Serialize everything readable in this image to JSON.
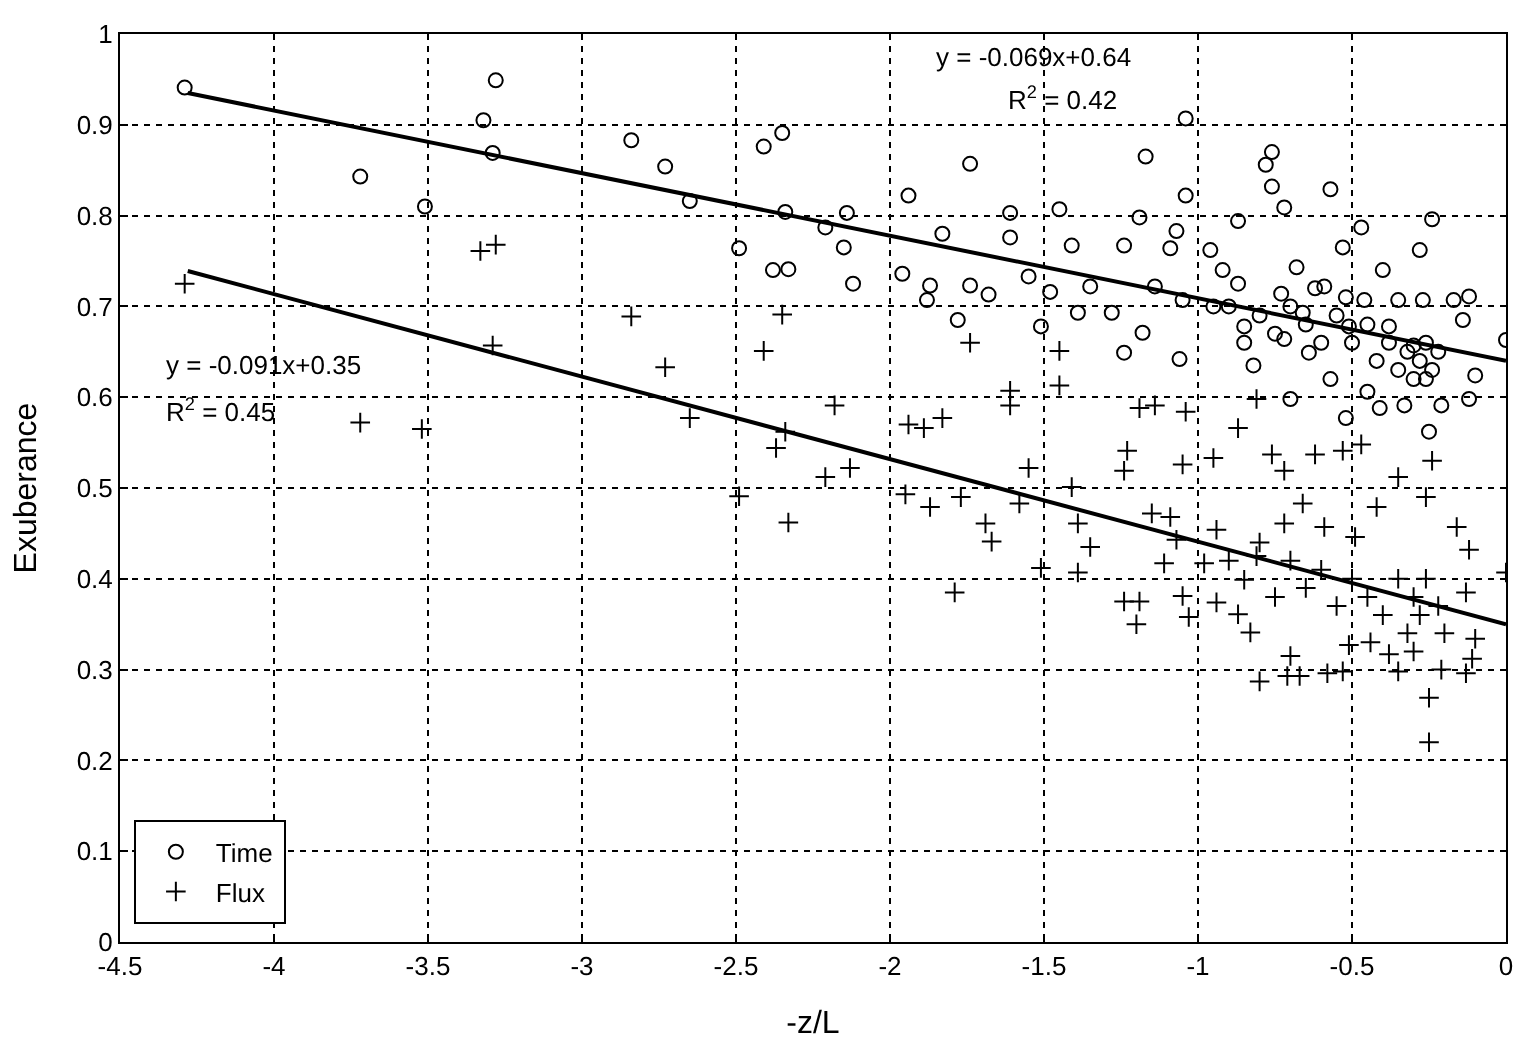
{
  "chart_data": {
    "type": "scatter",
    "xlabel": "-z/L",
    "ylabel": "Exuberance",
    "xlim": [
      -4.5,
      0
    ],
    "ylim": [
      0,
      1
    ],
    "xticks": [
      -4.5,
      -4,
      -3.5,
      -3,
      -2.5,
      -2,
      -1.5,
      -1,
      -0.5,
      0
    ],
    "yticks": [
      0,
      0.1,
      0.2,
      0.3,
      0.4,
      0.5,
      0.6,
      0.7,
      0.8,
      0.9,
      1
    ],
    "grid": true,
    "legend": "bottom left",
    "annotations": [
      "y = -0.069x+0.64",
      "R$^{2}$ = 0.42",
      "y = -0.091x+0.35",
      "R$^{2}$ = 0.45"
    ],
    "series": [
      {
        "name": "Time",
        "color": "#000000",
        "marker": "circle",
        "x": [
          -4.29,
          -3.72,
          -3.51,
          -3.32,
          -3.28,
          -3.29,
          -2.84,
          -2.73,
          -2.65,
          -2.49,
          -2.41,
          -2.35,
          -2.34,
          -2.38,
          -2.33,
          -2.21,
          -2.15,
          -2.14,
          -2.12,
          -1.94,
          -1.96,
          -1.87,
          -1.88,
          -1.83,
          -1.78,
          -1.74,
          -1.74,
          -1.68,
          -1.61,
          -1.61,
          -1.55,
          -1.51,
          -1.48,
          -1.45,
          -1.41,
          -1.39,
          -1.35,
          -1.28,
          -1.24,
          -1.24,
          -1.19,
          -1.17,
          -1.18,
          -1.14,
          -1.09,
          -1.07,
          -1.05,
          -1.04,
          -1.04,
          -1.06,
          -0.96,
          -0.95,
          -0.92,
          -0.87,
          -0.87,
          -0.85,
          -0.82,
          -0.78,
          -0.76,
          -0.76,
          -0.72,
          -0.73,
          -0.72,
          -0.7,
          -0.68,
          -0.66,
          -0.64,
          -0.59,
          -0.57,
          -0.57,
          -0.53,
          -0.52,
          -0.51,
          -0.47,
          -0.46,
          -0.45,
          -0.41,
          -0.4,
          -0.38,
          -0.35,
          -0.33,
          -0.3,
          -0.28,
          -0.27,
          -0.26,
          -0.25,
          -0.24,
          -0.21,
          -0.17,
          -0.14,
          -0.12,
          -0.12,
          -0.1,
          0.0,
          -0.8,
          -0.75,
          -0.7,
          -0.65,
          -0.6,
          -0.55,
          -0.5,
          -0.45,
          -0.42,
          -0.38,
          -0.35,
          -0.32,
          -0.3,
          -0.28,
          -0.26,
          -0.24,
          -0.22,
          -0.9,
          -0.85,
          -0.62,
          -0.52
        ],
        "values": [
          0.941,
          0.843,
          0.81,
          0.905,
          0.949,
          0.869,
          0.883,
          0.854,
          0.816,
          0.764,
          0.876,
          0.891,
          0.804,
          0.74,
          0.741,
          0.787,
          0.765,
          0.803,
          0.725,
          0.822,
          0.736,
          0.723,
          0.707,
          0.78,
          0.685,
          0.857,
          0.723,
          0.713,
          0.803,
          0.776,
          0.733,
          0.678,
          0.716,
          0.807,
          0.767,
          0.693,
          0.722,
          0.693,
          0.649,
          0.767,
          0.798,
          0.865,
          0.671,
          0.722,
          0.764,
          0.783,
          0.707,
          0.907,
          0.822,
          0.642,
          0.762,
          0.7,
          0.74,
          0.794,
          0.725,
          0.678,
          0.635,
          0.856,
          0.87,
          0.832,
          0.809,
          0.714,
          0.664,
          0.598,
          0.743,
          0.693,
          0.649,
          0.722,
          0.829,
          0.62,
          0.765,
          0.577,
          0.678,
          0.787,
          0.707,
          0.606,
          0.588,
          0.74,
          0.678,
          0.707,
          0.591,
          0.657,
          0.762,
          0.707,
          0.62,
          0.562,
          0.796,
          0.591,
          0.707,
          0.685,
          0.711,
          0.598,
          0.624,
          0.663,
          0.69,
          0.67,
          0.7,
          0.68,
          0.66,
          0.69,
          0.66,
          0.68,
          0.64,
          0.66,
          0.63,
          0.65,
          0.62,
          0.64,
          0.66,
          0.63,
          0.65,
          0.7,
          0.66,
          0.72,
          0.71
        ]
      },
      {
        "name": "Flux",
        "color": "#000000",
        "marker": "cross",
        "x": [
          -4.29,
          -3.72,
          -3.52,
          -3.33,
          -3.28,
          -3.29,
          -2.84,
          -2.73,
          -2.65,
          -2.49,
          -2.41,
          -2.35,
          -2.37,
          -2.34,
          -2.33,
          -2.18,
          -2.21,
          -2.13,
          -1.94,
          -1.89,
          -1.83,
          -1.95,
          -1.87,
          -1.79,
          -1.74,
          -1.69,
          -1.67,
          -1.77,
          -1.61,
          -1.61,
          -1.55,
          -1.58,
          -1.45,
          -1.45,
          -1.51,
          -1.41,
          -1.39,
          -1.35,
          -1.19,
          -1.14,
          -1.23,
          -1.24,
          -1.15,
          -1.07,
          -1.04,
          -1.05,
          -0.95,
          -0.87,
          -0.81,
          -0.76,
          -0.72,
          -0.62,
          -0.53,
          -0.47,
          -0.35,
          -0.24,
          -0.26,
          -1.39,
          -1.24,
          -1.19,
          -1.2,
          -1.05,
          -1.03,
          -0.94,
          -0.87,
          -0.83,
          -0.8,
          -0.71,
          -0.67,
          -0.7,
          -0.58,
          -0.53,
          -0.51,
          -0.44,
          -0.38,
          -0.35,
          -0.25,
          -0.25,
          -0.21,
          -0.13,
          -0.11,
          -0.1,
          0.0,
          -0.13,
          -0.16,
          -0.12,
          -0.42,
          -0.49,
          -0.59,
          -0.66,
          -0.72,
          -0.81,
          -0.85,
          -0.94,
          -0.98,
          -1.09,
          -1.11,
          -0.3,
          -0.28,
          -0.32,
          -0.26,
          -0.22,
          -0.35,
          -0.4,
          -0.45,
          -0.5,
          -0.55,
          -0.6,
          -0.65,
          -0.7,
          -0.75,
          -0.8,
          -0.9,
          -0.2,
          -0.3
        ],
        "values": [
          0.725,
          0.572,
          0.565,
          0.761,
          0.768,
          0.657,
          0.689,
          0.633,
          0.577,
          0.491,
          0.651,
          0.691,
          0.544,
          0.562,
          0.462,
          0.591,
          0.512,
          0.522,
          0.57,
          0.566,
          0.577,
          0.493,
          0.479,
          0.385,
          0.66,
          0.461,
          0.441,
          0.49,
          0.607,
          0.591,
          0.522,
          0.483,
          0.651,
          0.613,
          0.412,
          0.501,
          0.461,
          0.435,
          0.588,
          0.591,
          0.541,
          0.519,
          0.472,
          0.443,
          0.584,
          0.526,
          0.533,
          0.566,
          0.598,
          0.537,
          0.519,
          0.537,
          0.541,
          0.548,
          0.512,
          0.53,
          0.49,
          0.407,
          0.375,
          0.375,
          0.35,
          0.381,
          0.358,
          0.374,
          0.361,
          0.341,
          0.287,
          0.293,
          0.293,
          0.315,
          0.296,
          0.298,
          0.327,
          0.33,
          0.317,
          0.298,
          0.269,
          0.22,
          0.3,
          0.296,
          0.312,
          0.334,
          0.407,
          0.385,
          0.457,
          0.432,
          0.479,
          0.446,
          0.457,
          0.483,
          0.461,
          0.425,
          0.399,
          0.454,
          0.417,
          0.468,
          0.417,
          0.38,
          0.36,
          0.34,
          0.4,
          0.37,
          0.4,
          0.36,
          0.38,
          0.4,
          0.37,
          0.41,
          0.39,
          0.42,
          0.38,
          0.44,
          0.42,
          0.34,
          0.32
        ]
      },
      {
        "type": "line",
        "color": "#000000",
        "marker": "none",
        "x": [
          -4.28,
          0
        ],
        "values": [
          0.935,
          0.64
        ]
      },
      {
        "type": "line",
        "color": "#000000",
        "marker": "none",
        "x": [
          -4.28,
          0
        ],
        "values": [
          0.739,
          0.35
        ]
      }
    ]
  }
}
